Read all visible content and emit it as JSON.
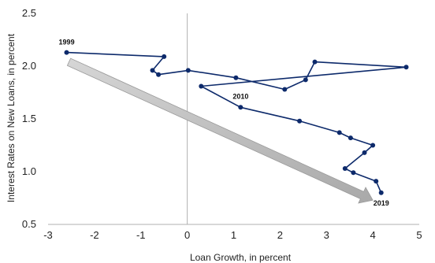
{
  "chart_data": {
    "type": "line",
    "title": "",
    "xlabel": "Loan Growth, in percent",
    "ylabel": "Interest Rates on New Loans, in percent",
    "xlim": [
      -3,
      5
    ],
    "ylim": [
      0.5,
      2.5
    ],
    "xticks": [
      -3,
      -2,
      -1,
      0,
      1,
      2,
      3,
      4,
      5
    ],
    "yticks": [
      0.5,
      1.0,
      1.5,
      2.0,
      2.5
    ],
    "x_tick_labels": [
      "-3",
      "-2",
      "-1",
      "0",
      "1",
      "2",
      "3",
      "4",
      "5"
    ],
    "y_tick_labels": [
      "0.5",
      "1.0",
      "1.5",
      "2.0",
      "2.5"
    ],
    "grid": false,
    "reference_lines": {
      "vertical_at_x": 0
    },
    "colors": {
      "series": "#0d2a6b",
      "trend_arrow": "#bdbdbd",
      "axis": "#b0b0b0"
    },
    "series": [
      {
        "x": [
          -2.6,
          -0.5,
          -0.75,
          -0.62,
          0.02,
          1.05,
          2.1,
          2.55,
          2.75,
          4.72,
          0.3,
          1.15,
          2.42,
          3.28,
          3.52,
          4.0,
          3.82,
          3.4,
          3.58,
          4.07,
          4.18
        ],
        "y": [
          2.13,
          2.09,
          1.96,
          1.92,
          1.96,
          1.89,
          1.78,
          1.87,
          2.04,
          1.99,
          1.81,
          1.61,
          1.48,
          1.37,
          1.32,
          1.25,
          1.18,
          1.03,
          0.99,
          0.91,
          0.8
        ]
      }
    ],
    "point_labels": [
      {
        "text": "1999",
        "x": -2.6,
        "y": 2.13
      },
      {
        "text": "2010",
        "x": 1.15,
        "y": 1.61
      },
      {
        "text": "2019",
        "x": 4.18,
        "y": 0.8
      }
    ],
    "trend_arrow": {
      "from": {
        "x": -2.55,
        "y": 2.04
      },
      "to": {
        "x": 4.0,
        "y": 0.73
      }
    }
  }
}
